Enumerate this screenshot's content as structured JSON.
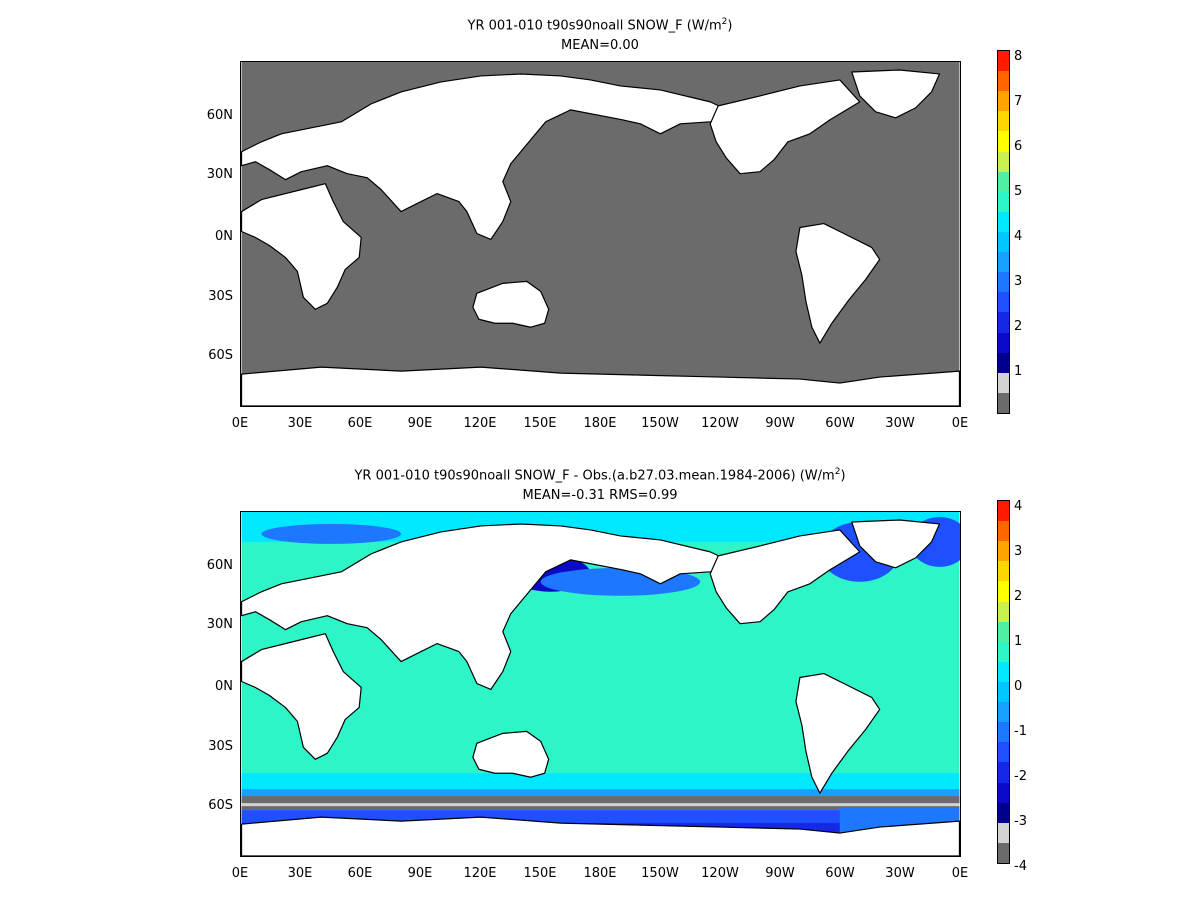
{
  "panels": [
    {
      "title_prefix": "YR 001-010 t90s90noall  SNOW_F (W/m",
      "title_sup": "2",
      "title_suffix": ")",
      "stats": "MEAN=0.00",
      "colorbar": {
        "labels": [
          "8",
          "7",
          "6",
          "5",
          "4",
          "3",
          "2",
          "1"
        ],
        "colors": [
          "#ff1a00",
          "#ff6600",
          "#ffa500",
          "#ffd700",
          "#ffff00",
          "#c8f050",
          "#50f0a0",
          "#2ef5c8",
          "#00e8ff",
          "#00c8ff",
          "#18a0ff",
          "#1e78ff",
          "#1e50ff",
          "#1428e6",
          "#0a0ac8",
          "#00008c",
          "#d3d3d3",
          "#6b6b6b"
        ],
        "ocean_color": "#6b6b6b"
      }
    },
    {
      "title_prefix": "YR 001-010 t90s90noall SNOW_F - Obs.(a.b27.03.mean.1984-2006) (W/m",
      "title_sup": "2",
      "title_suffix": ")",
      "stats": "MEAN=-0.31 RMS=0.99",
      "colorbar": {
        "labels": [
          "4",
          "3",
          "2",
          "1",
          "0",
          "-1",
          "-2",
          "-3",
          "-4"
        ],
        "colors": [
          "#ff1a00",
          "#ff6600",
          "#ffa500",
          "#ffd700",
          "#ffff00",
          "#c8f050",
          "#50f0a0",
          "#2ef5c8",
          "#00e8ff",
          "#00c8ff",
          "#18a0ff",
          "#1e78ff",
          "#1e50ff",
          "#1428e6",
          "#0a0ac8",
          "#00008c",
          "#d3d3d3",
          "#6b6b6b"
        ],
        "ocean_color": "#2ef5c8"
      }
    }
  ],
  "axes": {
    "lon_labels": [
      "0E",
      "30E",
      "60E",
      "90E",
      "120E",
      "150E",
      "180E",
      "150W",
      "120W",
      "90W",
      "60W",
      "30W",
      "0E"
    ],
    "lat_labels": [
      "60N",
      "30N",
      "0N",
      "30S",
      "60S"
    ]
  },
  "colors": {
    "land": "#ffffff",
    "coast": "#000000"
  }
}
